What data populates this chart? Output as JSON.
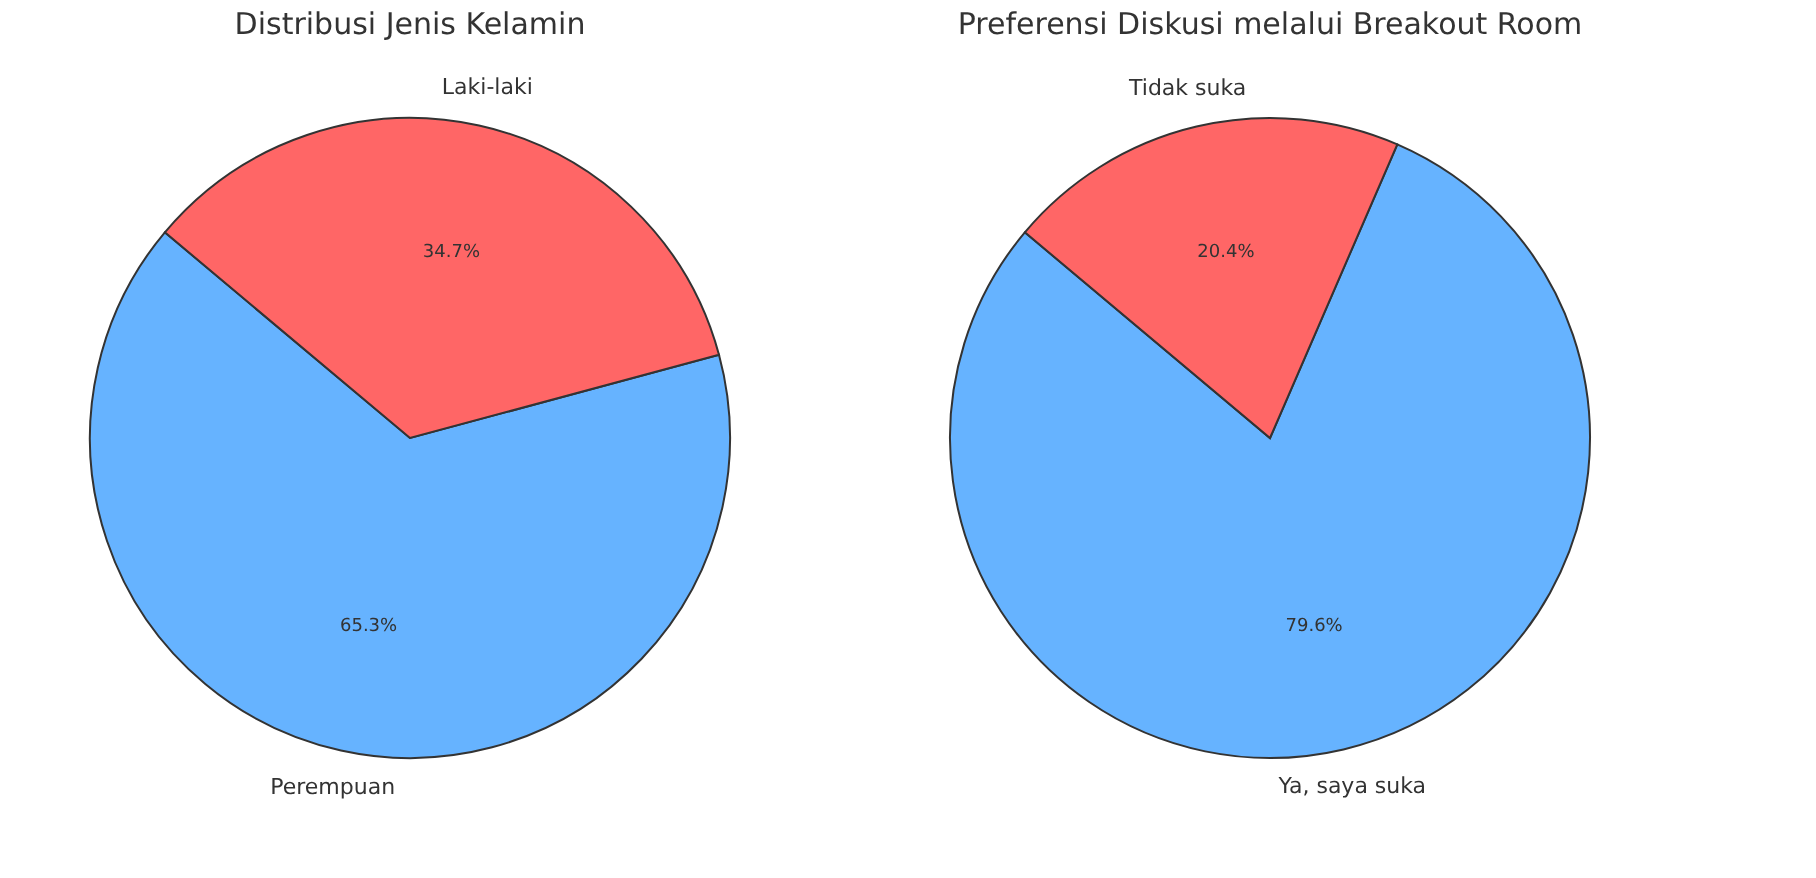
{
  "chart_data": [
    {
      "type": "pie",
      "title": "Distribusi Jenis Kelamin",
      "categories": [
        "Perempuan",
        "Laki-laki"
      ],
      "values": [
        65.3,
        34.7
      ],
      "colors": [
        "#66b3ff",
        "#ff6666"
      ],
      "value_labels": [
        "65.3%",
        "34.7%"
      ],
      "legend": false
    },
    {
      "type": "pie",
      "title": "Preferensi Diskusi melalui Breakout Room",
      "categories": [
        "Ya, saya suka",
        "Tidak suka"
      ],
      "values": [
        79.6,
        20.4
      ],
      "colors": [
        "#66b3ff",
        "#ff6666"
      ],
      "value_labels": [
        "79.6%",
        "20.4%"
      ],
      "legend": false
    }
  ]
}
